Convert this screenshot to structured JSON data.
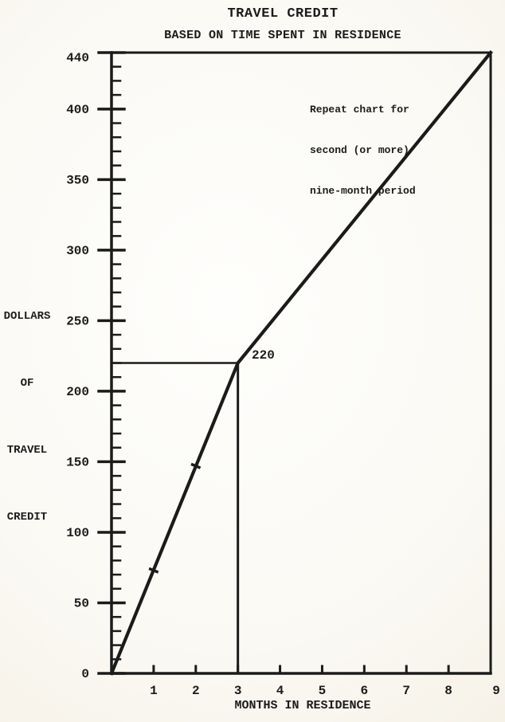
{
  "page": {
    "paper_color": "#f7f4ec",
    "ink_color": "#1b1b1b"
  },
  "chart": {
    "title": "TRAVEL CREDIT",
    "subtitle": "BASED ON TIME SPENT IN RESIDENCE",
    "y_axis_label_lines": [
      "DOLLARS",
      "OF",
      "TRAVEL",
      "CREDIT"
    ],
    "x_axis_label": "MONTHS IN RESIDENCE",
    "annotation_lines": [
      "Repeat chart for",
      "second (or more)",
      "nine-month period"
    ],
    "breakpoint_label": "220"
  },
  "chart_data": {
    "type": "line",
    "title": "TRAVEL CREDIT",
    "subtitle": "BASED ON TIME SPENT IN RESIDENCE",
    "xlabel": "MONTHS IN RESIDENCE",
    "ylabel": "DOLLARS OF TRAVEL CREDIT",
    "xlim": [
      0,
      9
    ],
    "ylim": [
      0,
      440
    ],
    "x_ticks": [
      1,
      2,
      3,
      4,
      5,
      6,
      7,
      8,
      9
    ],
    "y_ticks": [
      0,
      50,
      100,
      150,
      200,
      250,
      300,
      350,
      400,
      440
    ],
    "y_minor_step": 10,
    "grid": false,
    "legend": false,
    "series": [
      {
        "name": "travel_credit",
        "points": [
          [
            0,
            0
          ],
          [
            3,
            220
          ],
          [
            9,
            440
          ]
        ]
      }
    ],
    "point_markers": [
      [
        1,
        73
      ],
      [
        2,
        147
      ]
    ],
    "reference": {
      "x": 3,
      "y": 220,
      "label": "220"
    },
    "annotation": {
      "text": [
        "Repeat chart for",
        "second (or more)",
        "nine-month period"
      ],
      "anchor_x": 4.7,
      "anchor_y": 420
    }
  }
}
